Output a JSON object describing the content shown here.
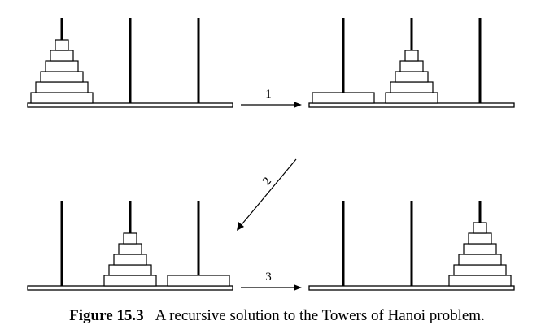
{
  "diagram": {
    "scenes": [
      {
        "id": "initial",
        "left_stack": [
          0,
          6
        ],
        "middle_stack": [],
        "right_stack": []
      },
      {
        "id": "after-step-1",
        "left_stack": [
          5
        ],
        "middle_stack": [
          0,
          4
        ],
        "right_stack": []
      },
      {
        "id": "after-step-2",
        "left_stack": [],
        "middle_stack": [
          0,
          4
        ],
        "right_stack": [
          5
        ]
      },
      {
        "id": "after-step-3",
        "left_stack": [],
        "middle_stack": [],
        "right_stack": [
          0,
          6
        ]
      }
    ],
    "steps": [
      {
        "from": "initial",
        "to": "after-step-1",
        "label": "1"
      },
      {
        "from": "after-step-1",
        "to": "after-step-2",
        "label": "2"
      },
      {
        "from": "after-step-2",
        "to": "after-step-3",
        "label": "3"
      }
    ],
    "disk_count": 6
  },
  "caption": {
    "label": "Figure 15.3",
    "text": "A recursive solution to the Towers of Hanoi problem."
  }
}
